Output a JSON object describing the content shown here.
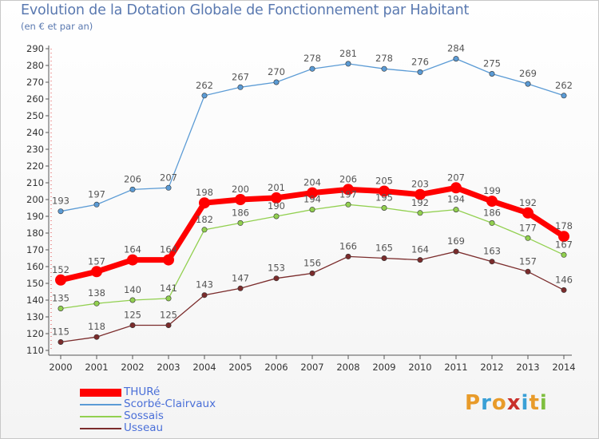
{
  "header": {
    "title": "Evolution de la Dotation Globale de Fonctionnement par Habitant",
    "subtitle": "(en € et par an)"
  },
  "logo": {
    "text": "Proxiti",
    "colors": [
      "#e89b2a",
      "#3aa0d6",
      "#e89b2a",
      "#c9302c",
      "#3aa0d6",
      "#e89b2a",
      "#7fbf3f"
    ]
  },
  "chart_data": {
    "type": "line",
    "title": "Evolution de la Dotation Globale de Fonctionnement par Habitant",
    "subtitle": "(en € et par an)",
    "xlabel": "",
    "ylabel": "",
    "x": [
      2000,
      2001,
      2002,
      2003,
      2004,
      2005,
      2006,
      2007,
      2008,
      2009,
      2010,
      2011,
      2012,
      2013,
      2014
    ],
    "ylim": [
      110,
      290
    ],
    "yticks": [
      110,
      120,
      130,
      140,
      150,
      160,
      170,
      180,
      190,
      200,
      210,
      220,
      230,
      240,
      250,
      260,
      270,
      280,
      290
    ],
    "grid": false,
    "legend_position": "bottom-left",
    "series": [
      {
        "name": "Scorbé-Clairvaux",
        "color": "#5b9bd5",
        "values": [
          193,
          197,
          206,
          207,
          262,
          267,
          270,
          278,
          281,
          278,
          276,
          284,
          275,
          269,
          262
        ]
      },
      {
        "name": "Sossais",
        "color": "#92d050",
        "values": [
          135,
          138,
          140,
          141,
          182,
          186,
          190,
          194,
          197,
          195,
          192,
          194,
          186,
          177,
          167
        ]
      },
      {
        "name": "Usseau",
        "color": "#7b2c2c",
        "values": [
          115,
          118,
          125,
          125,
          143,
          147,
          153,
          156,
          166,
          165,
          164,
          169,
          163,
          157,
          146
        ]
      },
      {
        "name": "THURé",
        "color": "#ff0000",
        "highlight": true,
        "values": [
          152,
          157,
          164,
          164,
          198,
          200,
          201,
          204,
          206,
          205,
          203,
          207,
          199,
          192,
          178
        ]
      }
    ]
  }
}
